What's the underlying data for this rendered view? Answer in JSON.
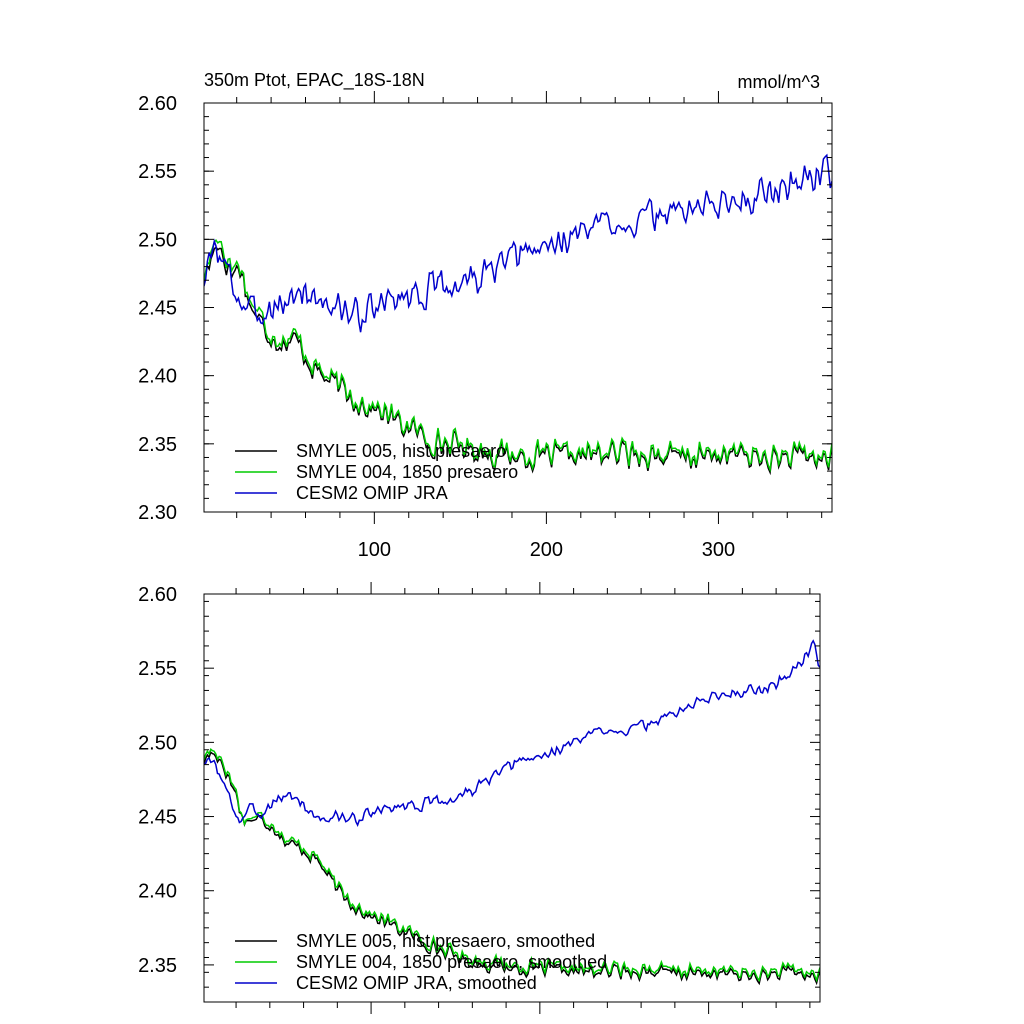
{
  "chart_data": [
    {
      "type": "line",
      "title": "350m Ptot, EPAC_18S-18N",
      "units": "mmol/m^3",
      "xlim": [
        1,
        366
      ],
      "ylim": [
        2.3,
        2.6
      ],
      "yticks": [
        2.3,
        2.35,
        2.4,
        2.45,
        2.5,
        2.55,
        2.6
      ],
      "ytick_labels": [
        "2.30",
        "2.35",
        "2.40",
        "2.45",
        "2.50",
        "2.55",
        "2.60"
      ],
      "xticks": [
        100,
        200,
        300
      ],
      "xtick_labels": [
        "100",
        "200",
        "300"
      ],
      "legend_position": "bottom-left",
      "series": [
        {
          "name": "SMYLE 005, hist presaero",
          "color": "#000000",
          "anchors": [
            [
              1,
              2.47
            ],
            [
              5,
              2.485
            ],
            [
              9,
              2.5
            ],
            [
              13,
              2.485
            ],
            [
              17,
              2.475
            ],
            [
              22,
              2.48
            ],
            [
              27,
              2.455
            ],
            [
              33,
              2.44
            ],
            [
              40,
              2.43
            ],
            [
              45,
              2.425
            ],
            [
              55,
              2.425
            ],
            [
              65,
              2.405
            ],
            [
              75,
              2.395
            ],
            [
              85,
              2.385
            ],
            [
              95,
              2.378
            ],
            [
              105,
              2.372
            ],
            [
              115,
              2.365
            ],
            [
              125,
              2.358
            ],
            [
              135,
              2.35
            ],
            [
              150,
              2.348
            ],
            [
              170,
              2.342
            ],
            [
              190,
              2.34
            ],
            [
              210,
              2.34
            ],
            [
              230,
              2.342
            ],
            [
              250,
              2.343
            ],
            [
              270,
              2.34
            ],
            [
              290,
              2.34
            ],
            [
              310,
              2.342
            ],
            [
              330,
              2.338
            ],
            [
              350,
              2.34
            ],
            [
              366,
              2.338
            ]
          ],
          "amp": 0.012,
          "seed": 17
        },
        {
          "name": "SMYLE 004, 1850 presaero",
          "color": "#00cc00",
          "anchors": [
            [
              1,
              2.47
            ],
            [
              5,
              2.49
            ],
            [
              9,
              2.505
            ],
            [
              13,
              2.49
            ],
            [
              17,
              2.48
            ],
            [
              22,
              2.482
            ],
            [
              27,
              2.458
            ],
            [
              33,
              2.445
            ],
            [
              40,
              2.432
            ],
            [
              45,
              2.428
            ],
            [
              55,
              2.428
            ],
            [
              65,
              2.408
            ],
            [
              75,
              2.397
            ],
            [
              85,
              2.387
            ],
            [
              95,
              2.38
            ],
            [
              105,
              2.374
            ],
            [
              115,
              2.367
            ],
            [
              125,
              2.36
            ],
            [
              135,
              2.352
            ],
            [
              150,
              2.35
            ],
            [
              170,
              2.344
            ],
            [
              190,
              2.342
            ],
            [
              210,
              2.342
            ],
            [
              230,
              2.344
            ],
            [
              250,
              2.345
            ],
            [
              270,
              2.342
            ],
            [
              290,
              2.342
            ],
            [
              310,
              2.344
            ],
            [
              330,
              2.34
            ],
            [
              350,
              2.342
            ],
            [
              366,
              2.34
            ]
          ],
          "amp": 0.012,
          "seed": 17
        },
        {
          "name": "CESM2 OMIP JRA",
          "color": "#0000cc",
          "anchors": [
            [
              1,
              2.47
            ],
            [
              8,
              2.495
            ],
            [
              15,
              2.475
            ],
            [
              22,
              2.455
            ],
            [
              30,
              2.445
            ],
            [
              40,
              2.45
            ],
            [
              50,
              2.455
            ],
            [
              60,
              2.462
            ],
            [
              70,
              2.455
            ],
            [
              80,
              2.448
            ],
            [
              90,
              2.445
            ],
            [
              100,
              2.448
            ],
            [
              110,
              2.455
            ],
            [
              120,
              2.46
            ],
            [
              130,
              2.462
            ],
            [
              140,
              2.465
            ],
            [
              150,
              2.468
            ],
            [
              160,
              2.472
            ],
            [
              170,
              2.478
            ],
            [
              180,
              2.485
            ],
            [
              190,
              2.49
            ],
            [
              200,
              2.495
            ],
            [
              210,
              2.5
            ],
            [
              220,
              2.505
            ],
            [
              230,
              2.51
            ],
            [
              240,
              2.515
            ],
            [
              250,
              2.512
            ],
            [
              260,
              2.515
            ],
            [
              270,
              2.52
            ],
            [
              280,
              2.522
            ],
            [
              290,
              2.525
            ],
            [
              300,
              2.525
            ],
            [
              310,
              2.53
            ],
            [
              320,
              2.532
            ],
            [
              330,
              2.535
            ],
            [
              340,
              2.54
            ],
            [
              350,
              2.545
            ],
            [
              360,
              2.55
            ],
            [
              366,
              2.55
            ]
          ],
          "amp": 0.015,
          "seed": 3
        }
      ],
      "legend": [
        "SMYLE 005, hist presaero",
        "SMYLE 004, 1850 presaero",
        "CESM2 OMIP JRA"
      ]
    },
    {
      "type": "line",
      "xlim": [
        1,
        366
      ],
      "ylim": [
        2.325,
        2.6
      ],
      "yticks": [
        2.35,
        2.4,
        2.45,
        2.5,
        2.55,
        2.6
      ],
      "ytick_labels": [
        "2.35",
        "2.40",
        "2.45",
        "2.50",
        "2.55",
        "2.60"
      ],
      "xticks": [
        100,
        200,
        300
      ],
      "legend_position": "bottom-left",
      "series": [
        {
          "name": "SMYLE 005, hist presaero, smoothed",
          "color": "#000000",
          "anchors": [
            [
              1,
              2.487
            ],
            [
              5,
              2.493
            ],
            [
              10,
              2.49
            ],
            [
              15,
              2.478
            ],
            [
              20,
              2.465
            ],
            [
              24,
              2.448
            ],
            [
              30,
              2.448
            ],
            [
              35,
              2.448
            ],
            [
              40,
              2.445
            ],
            [
              45,
              2.44
            ],
            [
              50,
              2.432
            ],
            [
              60,
              2.428
            ],
            [
              70,
              2.418
            ],
            [
              80,
              2.4
            ],
            [
              90,
              2.39
            ],
            [
              100,
              2.382
            ],
            [
              110,
              2.378
            ],
            [
              120,
              2.372
            ],
            [
              130,
              2.366
            ],
            [
              140,
              2.36
            ],
            [
              150,
              2.356
            ],
            [
              160,
              2.352
            ],
            [
              170,
              2.35
            ],
            [
              190,
              2.347
            ],
            [
              210,
              2.346
            ],
            [
              230,
              2.345
            ],
            [
              250,
              2.346
            ],
            [
              270,
              2.345
            ],
            [
              290,
              2.344
            ],
            [
              310,
              2.344
            ],
            [
              330,
              2.342
            ],
            [
              350,
              2.345
            ],
            [
              366,
              2.341
            ]
          ],
          "amp": 0.006,
          "seed": 17
        },
        {
          "name": "SMYLE 004, 1850 presaero, smoothed",
          "color": "#00cc00",
          "anchors": [
            [
              1,
              2.49
            ],
            [
              5,
              2.495
            ],
            [
              10,
              2.492
            ],
            [
              15,
              2.48
            ],
            [
              20,
              2.467
            ],
            [
              24,
              2.448
            ],
            [
              30,
              2.45
            ],
            [
              35,
              2.45
            ],
            [
              40,
              2.447
            ],
            [
              45,
              2.442
            ],
            [
              50,
              2.434
            ],
            [
              60,
              2.43
            ],
            [
              70,
              2.42
            ],
            [
              80,
              2.402
            ],
            [
              90,
              2.392
            ],
            [
              100,
              2.384
            ],
            [
              110,
              2.38
            ],
            [
              120,
              2.374
            ],
            [
              130,
              2.368
            ],
            [
              140,
              2.362
            ],
            [
              150,
              2.358
            ],
            [
              160,
              2.354
            ],
            [
              170,
              2.352
            ],
            [
              190,
              2.349
            ],
            [
              210,
              2.348
            ],
            [
              230,
              2.347
            ],
            [
              250,
              2.348
            ],
            [
              270,
              2.347
            ],
            [
              290,
              2.346
            ],
            [
              310,
              2.346
            ],
            [
              330,
              2.344
            ],
            [
              350,
              2.347
            ],
            [
              366,
              2.343
            ]
          ],
          "amp": 0.006,
          "seed": 17
        },
        {
          "name": "CESM2 OMIP JRA, smoothed",
          "color": "#0000cc",
          "anchors": [
            [
              1,
              2.487
            ],
            [
              8,
              2.485
            ],
            [
              15,
              2.465
            ],
            [
              22,
              2.447
            ],
            [
              28,
              2.455
            ],
            [
              35,
              2.452
            ],
            [
              42,
              2.46
            ],
            [
              50,
              2.465
            ],
            [
              58,
              2.46
            ],
            [
              65,
              2.452
            ],
            [
              72,
              2.448
            ],
            [
              80,
              2.45
            ],
            [
              90,
              2.448
            ],
            [
              100,
              2.452
            ],
            [
              110,
              2.455
            ],
            [
              120,
              2.458
            ],
            [
              130,
              2.458
            ],
            [
              140,
              2.46
            ],
            [
              150,
              2.462
            ],
            [
              160,
              2.468
            ],
            [
              170,
              2.475
            ],
            [
              180,
              2.482
            ],
            [
              190,
              2.488
            ],
            [
              200,
              2.49
            ],
            [
              210,
              2.495
            ],
            [
              220,
              2.5
            ],
            [
              230,
              2.505
            ],
            [
              240,
              2.51
            ],
            [
              250,
              2.508
            ],
            [
              260,
              2.51
            ],
            [
              270,
              2.515
            ],
            [
              280,
              2.52
            ],
            [
              290,
              2.525
            ],
            [
              300,
              2.53
            ],
            [
              310,
              2.533
            ],
            [
              320,
              2.535
            ],
            [
              330,
              2.535
            ],
            [
              340,
              2.54
            ],
            [
              350,
              2.548
            ],
            [
              358,
              2.56
            ],
            [
              362,
              2.565
            ],
            [
              366,
              2.553
            ]
          ],
          "amp": 0.005,
          "seed": 3
        }
      ],
      "legend": [
        "SMYLE 005, hist presaero, smoothed",
        "SMYLE 004, 1850 presaero, smoothed",
        "CESM2 OMIP JRA, smoothed"
      ]
    }
  ]
}
